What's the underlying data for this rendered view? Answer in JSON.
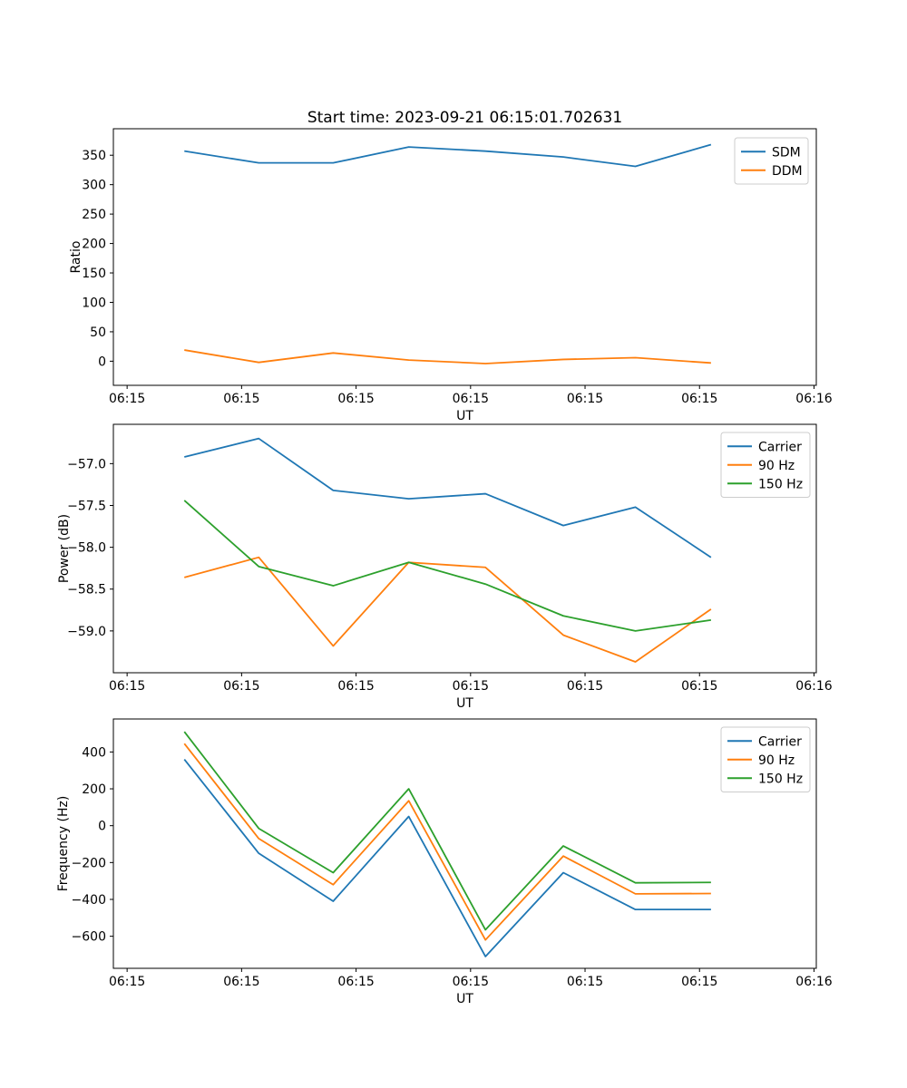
{
  "figure": {
    "title": "Start time: 2023-09-21 06:15:01.702631",
    "background": "#ffffff"
  },
  "colors": {
    "blue": "#1f77b4",
    "orange": "#ff7f0e",
    "green": "#2ca02c",
    "axis": "#000000",
    "legend_border": "#cccccc"
  },
  "chart_data": [
    {
      "type": "line",
      "title": "Start time: 2023-09-21 06:15:01.702631",
      "xlabel": "UT",
      "ylabel": "Ratio",
      "grid": false,
      "legend_position": "upper right",
      "x_tick_labels": [
        "06:15",
        "06:15",
        "06:15",
        "06:15",
        "06:15",
        "06:15",
        "06:16"
      ],
      "x_tick_seconds": [
        0,
        10,
        20,
        30,
        40,
        50,
        60
      ],
      "xlim_seconds": [
        -1.2,
        60.2
      ],
      "x_seconds": [
        5,
        11.5,
        18,
        24.6,
        31.3,
        38.1,
        44.4,
        51
      ],
      "y_tick_values": [
        0,
        50,
        100,
        150,
        200,
        250,
        300,
        350
      ],
      "y_tick_labels": [
        "0",
        "50",
        "100",
        "150",
        "200",
        "250",
        "300",
        "350"
      ],
      "ylim": [
        -41,
        395
      ],
      "series": [
        {
          "name": "SDM",
          "color": "#1f77b4",
          "values": [
            357,
            337,
            337,
            364,
            357,
            347,
            331,
            368
          ]
        },
        {
          "name": "DDM",
          "color": "#ff7f0e",
          "values": [
            19,
            -2,
            14,
            2,
            -4,
            3,
            6,
            -3
          ]
        }
      ]
    },
    {
      "type": "line",
      "title": "",
      "xlabel": "UT",
      "ylabel": "Power (dB)",
      "grid": false,
      "legend_position": "upper right",
      "x_tick_labels": [
        "06:15",
        "06:15",
        "06:15",
        "06:15",
        "06:15",
        "06:15",
        "06:16"
      ],
      "x_tick_seconds": [
        0,
        10,
        20,
        30,
        40,
        50,
        60
      ],
      "xlim_seconds": [
        -1.2,
        60.2
      ],
      "x_seconds": [
        5,
        11.5,
        18,
        24.6,
        31.3,
        38.1,
        44.4,
        51
      ],
      "y_tick_values": [
        -57.0,
        -57.5,
        -58.0,
        -58.5,
        -59.0
      ],
      "y_tick_labels": [
        "−57.0",
        "−57.5",
        "−58.0",
        "−58.5",
        "−59.0"
      ],
      "ylim": [
        -59.5,
        -56.53
      ],
      "series": [
        {
          "name": "Carrier",
          "color": "#1f77b4",
          "values": [
            -56.92,
            -56.7,
            -57.32,
            -57.42,
            -57.36,
            -57.74,
            -57.52,
            -58.12
          ]
        },
        {
          "name": "90 Hz",
          "color": "#ff7f0e",
          "values": [
            -58.36,
            -58.12,
            -59.18,
            -58.18,
            -58.24,
            -59.05,
            -59.37,
            -58.74
          ]
        },
        {
          "name": "150 Hz",
          "color": "#2ca02c",
          "values": [
            -57.44,
            -58.23,
            -58.46,
            -58.18,
            -58.44,
            -58.82,
            -59.0,
            -58.87
          ]
        }
      ]
    },
    {
      "type": "line",
      "title": "",
      "xlabel": "UT",
      "ylabel": "Frequency (Hz)",
      "grid": false,
      "legend_position": "upper right",
      "x_tick_labels": [
        "06:15",
        "06:15",
        "06:15",
        "06:15",
        "06:15",
        "06:15",
        "06:16"
      ],
      "x_tick_seconds": [
        0,
        10,
        20,
        30,
        40,
        50,
        60
      ],
      "xlim_seconds": [
        -1.2,
        60.2
      ],
      "x_seconds": [
        5,
        11.5,
        18,
        24.6,
        31.3,
        38.1,
        44.4,
        51
      ],
      "y_tick_values": [
        400,
        200,
        0,
        -200,
        -400,
        -600
      ],
      "y_tick_labels": [
        "400",
        "200",
        "0",
        "−200",
        "−400",
        "−600"
      ],
      "ylim": [
        -774,
        579
      ],
      "series": [
        {
          "name": "Carrier",
          "color": "#1f77b4",
          "values": [
            360,
            -150,
            -410,
            50,
            -710,
            -255,
            -455,
            -455
          ]
        },
        {
          "name": "90 Hz",
          "color": "#ff7f0e",
          "values": [
            445,
            -70,
            -320,
            135,
            -620,
            -165,
            -370,
            -368
          ]
        },
        {
          "name": "150 Hz",
          "color": "#2ca02c",
          "values": [
            510,
            -15,
            -255,
            200,
            -565,
            -110,
            -310,
            -308
          ]
        }
      ]
    }
  ]
}
